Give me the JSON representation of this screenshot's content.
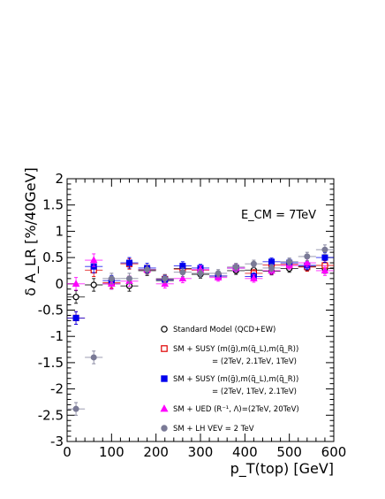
{
  "chart_data": {
    "type": "scatter",
    "title": "",
    "xlabel": "p_T(top) [GeV]",
    "ylabel": "δ A_LR [%/40GeV]",
    "xlim": [
      0,
      600
    ],
    "ylim": [
      -3,
      2
    ],
    "x_ticks": [
      0,
      100,
      200,
      300,
      400,
      500,
      600
    ],
    "y_ticks": [
      -3,
      -2.5,
      -2,
      -1.5,
      -1,
      -0.5,
      0,
      0.5,
      1,
      1.5,
      2
    ],
    "annotation": "E_CM = 7TeV",
    "legend_position": "bottom-right",
    "x": [
      20,
      60,
      100,
      140,
      180,
      220,
      260,
      300,
      340,
      380,
      420,
      460,
      500,
      540,
      580
    ],
    "x_error": 20,
    "series": [
      {
        "name": "Standard Model (QCD+EW)",
        "color": "#000000",
        "marker": "open-circle",
        "values": [
          -0.25,
          -0.02,
          0.0,
          -0.04,
          0.25,
          0.06,
          0.29,
          0.18,
          0.15,
          0.25,
          0.26,
          0.24,
          0.29,
          0.33,
          0.29
        ],
        "errors": [
          0.12,
          0.12,
          0.1,
          0.1,
          0.09,
          0.08,
          0.08,
          0.07,
          0.07,
          0.07,
          0.07,
          0.07,
          0.07,
          0.08,
          0.09
        ]
      },
      {
        "name": "SM + SUSY (m(g̃),m(q̃_L),m(q̃_R))",
        "name_line2": "= (2TeV, 2.1TeV, 1TeV)",
        "color": "#e00000",
        "marker": "open-square",
        "values": [
          -0.65,
          0.26,
          0.02,
          0.38,
          0.27,
          0.09,
          0.28,
          0.26,
          0.15,
          0.3,
          0.2,
          0.36,
          0.37,
          0.32,
          0.35
        ],
        "errors": [
          0.12,
          0.12,
          0.1,
          0.1,
          0.09,
          0.08,
          0.08,
          0.07,
          0.07,
          0.07,
          0.07,
          0.07,
          0.07,
          0.08,
          0.09
        ]
      },
      {
        "name": "SM + SUSY (m(g̃),m(q̃_L),m(q̃_R))",
        "name_line2": "= (2TeV, 1TeV, 2.1TeV)",
        "color": "#0000ee",
        "marker": "filled-square",
        "values": [
          -0.65,
          0.33,
          0.06,
          0.4,
          0.3,
          0.08,
          0.34,
          0.3,
          0.15,
          0.3,
          0.14,
          0.42,
          0.4,
          0.35,
          0.5
        ],
        "errors": [
          0.12,
          0.12,
          0.1,
          0.1,
          0.09,
          0.08,
          0.08,
          0.07,
          0.07,
          0.07,
          0.07,
          0.07,
          0.07,
          0.08,
          0.09
        ]
      },
      {
        "name": "SM + UED (R⁻¹, Λ)=(2TeV, 20TeV)",
        "color": "#ff00ff",
        "marker": "filled-triangle",
        "values": [
          0.0,
          0.45,
          0.0,
          0.05,
          0.27,
          0.0,
          0.1,
          0.27,
          0.12,
          0.3,
          0.1,
          0.25,
          0.35,
          0.4,
          0.25
        ],
        "errors": [
          0.12,
          0.12,
          0.1,
          0.1,
          0.09,
          0.08,
          0.08,
          0.07,
          0.07,
          0.07,
          0.07,
          0.07,
          0.07,
          0.08,
          0.09
        ]
      },
      {
        "name": "SM + LH VEV = 2 TeV",
        "color": "#7a7a96",
        "marker": "filled-circle",
        "values": [
          -2.38,
          -1.4,
          0.1,
          0.1,
          0.27,
          0.1,
          0.22,
          0.2,
          0.2,
          0.32,
          0.38,
          0.3,
          0.42,
          0.52,
          0.65
        ],
        "errors": [
          0.12,
          0.12,
          0.1,
          0.1,
          0.09,
          0.08,
          0.08,
          0.07,
          0.07,
          0.07,
          0.07,
          0.07,
          0.07,
          0.08,
          0.09
        ]
      }
    ]
  }
}
